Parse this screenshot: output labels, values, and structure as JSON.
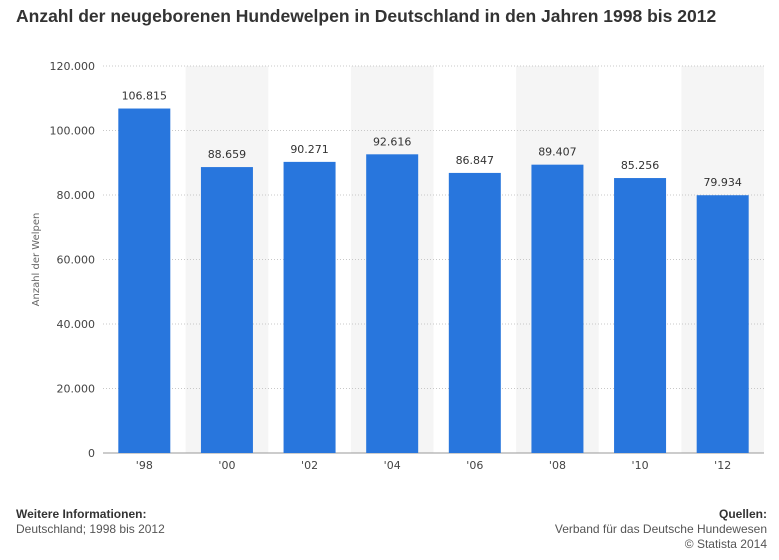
{
  "page": {
    "title": "Anzahl der neugeborenen Hundewelpen in Deutschland in den Jahren 1998 bis 2012"
  },
  "footer": {
    "info_heading": "Weitere Informationen:",
    "info_text": "Deutschland; 1998 bis 2012",
    "sources_heading": "Quellen:",
    "sources_text": "Verband für das Deutsche Hundewesen",
    "copyright": "© Statista 2014"
  },
  "colors": {
    "bar": "#2876dd",
    "band": "#f5f5f5",
    "grid": "#c8c8c8"
  },
  "chart_data": {
    "type": "bar",
    "categories": [
      "'98",
      "'00",
      "'02",
      "'04",
      "'06",
      "'08",
      "'10",
      "'12"
    ],
    "values": [
      106815,
      88659,
      90271,
      92616,
      86847,
      89407,
      85256,
      79934
    ],
    "value_labels": [
      "106.815",
      "88.659",
      "90.271",
      "92.616",
      "86.847",
      "89.407",
      "85.256",
      "79.934"
    ],
    "ylabel": "Anzahl der Welpen",
    "ylim": [
      0,
      120000
    ],
    "yticks": [
      0,
      20000,
      40000,
      60000,
      80000,
      100000,
      120000
    ],
    "ytick_labels": [
      "0",
      "20.000",
      "40.000",
      "60.000",
      "80.000",
      "100.000",
      "120.000"
    ],
    "grid": true
  }
}
